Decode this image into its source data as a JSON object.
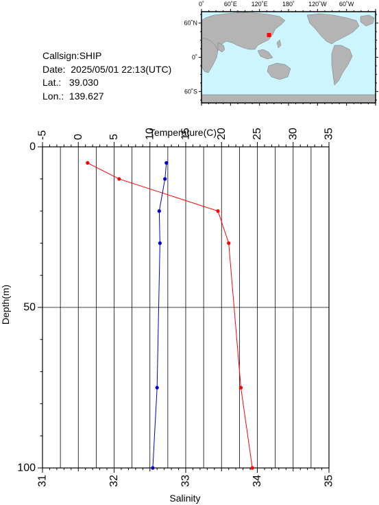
{
  "station": {
    "callsign_line": "Callsign:SHIP",
    "date_line": "Date:  2025/05/01 22:13(UTC)",
    "lat_line": "Lat.:   39.030",
    "lon_line": "Lon.:  139.627",
    "latitude": 39.03,
    "longitude": 139.627
  },
  "map": {
    "lon_labels": [
      "0˚",
      "60˚E",
      "120˚E",
      "180˚",
      "120˚W",
      "60˚W"
    ],
    "lat_labels": [
      "60˚N",
      "0˚",
      "60˚S"
    ],
    "ocean_color": "#ccf5ff",
    "land_color": "#b4b4b4",
    "marker_color": "#ff0000"
  },
  "chart_data": {
    "type": "line",
    "depth_axis": {
      "label": "Depth(m)",
      "range": [
        0,
        100
      ],
      "ticks": [
        "0",
        "50",
        "100"
      ],
      "reversed": true
    },
    "temperature_axis": {
      "label": "Temperature(C)",
      "range": [
        -5,
        35
      ],
      "ticks": [
        "-5",
        "0",
        "5",
        "10",
        "15",
        "20",
        "25",
        "30",
        "35"
      ]
    },
    "salinity_axis": {
      "label": "Salinity",
      "range": [
        31,
        35
      ],
      "ticks": [
        "31",
        "32",
        "33",
        "34",
        "35"
      ]
    },
    "grid": true,
    "series": [
      {
        "color": "#ff0000",
        "variable": "temperature",
        "depth": [
          5,
          10,
          20,
          30,
          75,
          100
        ],
        "values": [
          1.3,
          5.7,
          19.5,
          21.0,
          22.7,
          24.3
        ]
      },
      {
        "color": "#0000cc",
        "variable": "temperature",
        "depth": [
          5,
          10,
          20,
          30,
          75,
          100
        ],
        "values": [
          12.3,
          12.1,
          11.3,
          11.4,
          11.0,
          10.4
        ]
      }
    ]
  }
}
